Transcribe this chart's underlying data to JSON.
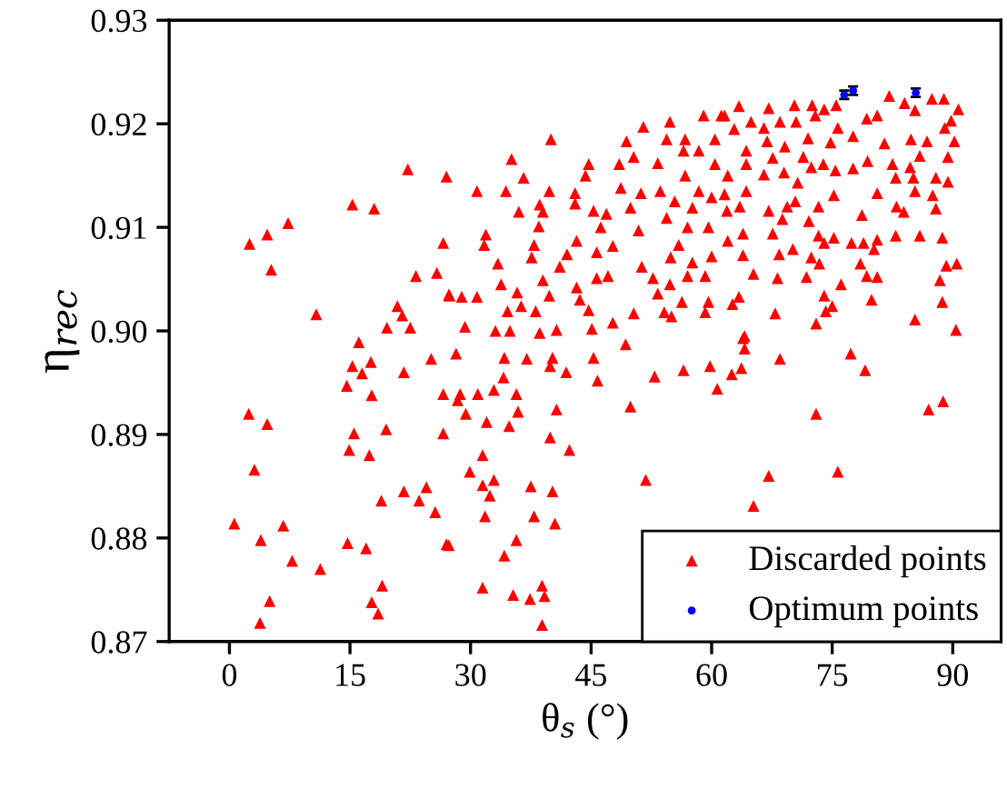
{
  "chart_data": {
    "type": "scatter",
    "xlabel": "θ$_{s}$ (°)",
    "ylabel": "η$_{rec}$",
    "xlim": [
      -7.5,
      96
    ],
    "ylim": [
      0.87,
      0.93
    ],
    "xticks": [
      0,
      15,
      30,
      45,
      60,
      75,
      90
    ],
    "yticks": [
      {
        "value": 0.87,
        "label": "0.87"
      },
      {
        "value": 0.88,
        "label": "0.88"
      },
      {
        "value": 0.89,
        "label": "0.89"
      },
      {
        "value": 0.9,
        "label": "0.90"
      },
      {
        "value": 0.91,
        "label": "0.91"
      },
      {
        "value": 0.92,
        "label": "0.92"
      },
      {
        "value": 0.93,
        "label": "0.93"
      }
    ],
    "grid": false,
    "legend": "bottom right",
    "series": [
      {
        "name": "Discarded points",
        "color": "#ff0000",
        "marker": "triangle",
        "x": [
          22.2,
          27.0,
          15.3,
          18.0,
          7.3,
          4.7,
          2.5,
          26.6,
          5.2,
          23.2,
          25.8,
          27.3,
          10.8,
          20.9,
          21.5,
          19.6,
          22.5,
          40.0,
          35.1,
          44.7,
          44.3,
          36.6,
          30.8,
          34.4,
          39.8,
          43.0,
          43.0,
          38.6,
          36.0,
          39.0,
          45.3,
          46.9,
          38.5,
          46.2,
          31.9,
          31.7,
          37.9,
          43.2,
          47.7,
          37.6,
          42.0,
          45.7,
          33.4,
          41.1,
          39.0,
          45.7,
          47.1,
          33.8,
          35.8,
          39.8,
          27.4,
          28.9,
          30.8,
          43.2,
          43.6,
          44.7,
          34.6,
          36.3,
          38.1,
          50.3,
          47.7,
          29.3,
          33.1,
          34.9,
          38.6,
          40.7,
          45.1,
          51.5,
          54.8,
          59.0,
          61.2,
          49.4,
          54.4,
          56.7,
          60.4,
          50.3,
          56.5,
          58.4,
          48.5,
          53.3,
          60.4,
          56.7,
          48.7,
          51.2,
          53.6,
          58.4,
          55.4,
          49.9,
          57.6,
          60.0,
          54.4,
          57.0,
          59.6,
          50.9,
          55.9,
          54.9,
          57.6,
          60.0,
          51.3,
          52.7,
          54.8,
          57.0,
          59.2,
          53.3,
          56.3,
          59.6,
          54.1,
          59.2,
          55.0,
          82.1,
          87.4,
          88.9,
          90.7,
          84.0,
          85.3,
          63.4,
          67.1,
          70.3,
          72.5,
          74.0,
          75.5,
          61.6,
          64.9,
          68.5,
          70.5,
          72.9,
          79.3,
          80.6,
          89.8,
          62.8,
          66.5,
          75.7,
          77.6,
          89.0,
          66.9,
          69.1,
          72.0,
          74.8,
          81.5,
          84.8,
          86.8,
          90.2,
          64.3,
          64.3,
          67.6,
          71.4,
          89.4,
          85.9,
          72.4,
          73.9,
          75.4,
          77.6,
          79.4,
          82.5,
          84.7,
          87.9,
          62.0,
          66.5,
          69.0,
          70.7,
          82.9,
          85.1,
          89.4,
          64.3,
          61.6,
          75.2,
          80.6,
          85.3,
          87.5,
          63.5,
          67.1,
          69.4,
          70.4,
          73.3,
          83.0,
          83.9,
          87.9,
          61.9,
          68.8,
          72.1,
          78.7,
          63.9,
          67.6,
          73.3,
          74.0,
          75.2,
          77.4,
          78.9,
          80.6,
          82.9,
          85.9,
          88.7,
          62.0,
          63.9,
          68.4,
          70.1,
          72.4,
          73.4,
          80.2,
          78.5,
          89.2,
          90.5,
          65.2,
          71.8,
          68.2,
          79.3,
          80.6,
          76.1,
          88.4,
          63.4,
          62.6,
          74.0,
          79.9,
          88.7,
          75.0,
          74.2,
          67.9,
          85.3,
          73.0,
          90.4,
          64.1,
          16.1,
          15.3,
          17.6,
          16.5,
          21.7,
          25.1,
          14.6,
          17.7,
          26.6,
          2.4,
          4.7,
          15.5,
          19.5,
          26.6,
          14.9,
          17.4,
          3.1,
          21.7,
          24.5,
          18.9,
          23.6,
          25.6,
          0.6,
          6.7,
          3.9,
          14.7,
          17.0,
          27.0,
          7.8,
          11.3,
          19.0,
          5.0,
          17.7,
          18.5,
          3.8,
          28.2,
          34.2,
          37.0,
          40.2,
          39.9,
          45.3,
          49.3,
          41.9,
          45.8,
          34.1,
          52.9,
          56.5,
          59.8,
          60.7,
          28.7,
          30.9,
          32.9,
          35.7,
          28.4,
          29.4,
          32.0,
          35.9,
          34.8,
          40.7,
          49.9,
          39.9,
          42.3,
          31.5,
          29.9,
          31.5,
          32.9,
          32.4,
          37.5,
          40.2,
          51.8,
          31.8,
          37.9,
          40.5,
          35.7,
          27.3,
          34.2,
          31.5,
          35.3,
          37.4,
          38.9,
          39.2,
          38.9,
          63.9,
          64.1,
          63.7,
          62.5,
          68.5,
          77.3,
          79.1,
          73.0,
          87.0,
          88.8,
          67.1,
          75.7,
          65.2
        ],
        "values": [
          0.9156,
          0.9149,
          0.9122,
          0.9118,
          0.9104,
          0.9093,
          0.9084,
          0.9085,
          0.9059,
          0.9053,
          0.9056,
          0.9035,
          0.9016,
          0.9024,
          0.9015,
          0.9003,
          0.9003,
          0.9185,
          0.9166,
          0.9161,
          0.915,
          0.9148,
          0.9135,
          0.9135,
          0.9135,
          0.9133,
          0.9123,
          0.9122,
          0.9115,
          0.9115,
          0.9116,
          0.9113,
          0.9101,
          0.91,
          0.9093,
          0.9083,
          0.9083,
          0.9087,
          0.9082,
          0.9071,
          0.9074,
          0.9076,
          0.9065,
          0.9062,
          0.9049,
          0.9051,
          0.9053,
          0.9045,
          0.9037,
          0.9034,
          0.9034,
          0.9033,
          0.9033,
          0.9042,
          0.903,
          0.902,
          0.9019,
          0.9024,
          0.9019,
          0.9017,
          0.9008,
          0.9004,
          0.9,
          0.9,
          0.8998,
          0.9001,
          0.9002,
          0.9197,
          0.9202,
          0.9208,
          0.9208,
          0.9183,
          0.9185,
          0.9185,
          0.9185,
          0.9168,
          0.9174,
          0.9174,
          0.9161,
          0.9162,
          0.9161,
          0.915,
          0.9138,
          0.9133,
          0.9135,
          0.9135,
          0.9125,
          0.9119,
          0.9119,
          0.9129,
          0.9109,
          0.91,
          0.91,
          0.9097,
          0.9083,
          0.9071,
          0.9066,
          0.9072,
          0.9062,
          0.9051,
          0.9045,
          0.9053,
          0.9053,
          0.9036,
          0.9028,
          0.9028,
          0.9018,
          0.9018,
          0.9014,
          0.9227,
          0.9224,
          0.9224,
          0.9214,
          0.922,
          0.9213,
          0.9217,
          0.9215,
          0.9218,
          0.9218,
          0.9214,
          0.9218,
          0.9208,
          0.9202,
          0.9202,
          0.9202,
          0.9208,
          0.9205,
          0.9208,
          0.9203,
          0.9195,
          0.9196,
          0.9196,
          0.9188,
          0.9196,
          0.9183,
          0.9178,
          0.9186,
          0.9182,
          0.9181,
          0.9185,
          0.9183,
          0.9183,
          0.9174,
          0.9161,
          0.9167,
          0.9168,
          0.9168,
          0.9169,
          0.9158,
          0.9161,
          0.9155,
          0.9157,
          0.9164,
          0.9161,
          0.9158,
          0.9148,
          0.915,
          0.9151,
          0.9153,
          0.9143,
          0.9148,
          0.9148,
          0.9144,
          0.9135,
          0.9132,
          0.9131,
          0.9133,
          0.9135,
          0.9131,
          0.912,
          0.9116,
          0.912,
          0.9125,
          0.912,
          0.912,
          0.9115,
          0.9118,
          0.9116,
          0.9108,
          0.9106,
          0.9112,
          0.9094,
          0.9094,
          0.9092,
          0.9085,
          0.909,
          0.9085,
          0.9085,
          0.9088,
          0.9092,
          0.9092,
          0.909,
          0.9087,
          0.9073,
          0.9074,
          0.9079,
          0.9071,
          0.9065,
          0.9079,
          0.9065,
          0.9063,
          0.9065,
          0.9055,
          0.9052,
          0.9051,
          0.9053,
          0.9052,
          0.9045,
          0.9049,
          0.9033,
          0.9026,
          0.9034,
          0.903,
          0.9028,
          0.9024,
          0.9019,
          0.9017,
          0.9011,
          0.9007,
          0.9001,
          0.8995,
          0.8989,
          0.8966,
          0.897,
          0.8959,
          0.896,
          0.8973,
          0.8947,
          0.8938,
          0.8939,
          0.892,
          0.891,
          0.8901,
          0.8905,
          0.8901,
          0.8885,
          0.888,
          0.8866,
          0.8845,
          0.8849,
          0.8836,
          0.8836,
          0.8825,
          0.8814,
          0.8812,
          0.8798,
          0.8795,
          0.879,
          0.8794,
          0.8778,
          0.877,
          0.8754,
          0.8739,
          0.8738,
          0.8727,
          0.8718,
          0.8978,
          0.8974,
          0.8973,
          0.8974,
          0.8966,
          0.8974,
          0.8987,
          0.896,
          0.8952,
          0.8955,
          0.8956,
          0.8962,
          0.8966,
          0.8944,
          0.8939,
          0.8939,
          0.8943,
          0.8939,
          0.8933,
          0.892,
          0.8912,
          0.8922,
          0.8908,
          0.8924,
          0.8927,
          0.8897,
          0.8885,
          0.888,
          0.8864,
          0.8851,
          0.8856,
          0.8841,
          0.885,
          0.8845,
          0.8856,
          0.8821,
          0.8821,
          0.8814,
          0.8798,
          0.8793,
          0.8783,
          0.8752,
          0.8745,
          0.8741,
          0.8754,
          0.8744,
          0.8716,
          0.8993,
          0.8983,
          0.8964,
          0.8958,
          0.8973,
          0.8978,
          0.8962,
          0.892,
          0.8924,
          0.8932,
          0.886,
          0.8864,
          0.8831
        ]
      },
      {
        "name": "Optimum points",
        "color": "#0000ff",
        "marker": "circle",
        "x": [
          77.6,
          76.5,
          85.4
        ],
        "values": [
          0.9232,
          0.9228,
          0.923
        ],
        "errors": [
          0.0004,
          0.0004,
          0.0004
        ]
      }
    ]
  }
}
